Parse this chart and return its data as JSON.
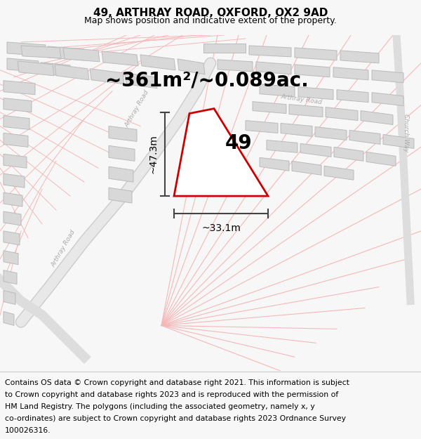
{
  "title": "49, ARTHRAY ROAD, OXFORD, OX2 9AD",
  "subtitle": "Map shows position and indicative extent of the property.",
  "area_label": "~361m²/~0.089ac.",
  "number_label": "49",
  "width_label": "~33.1m",
  "height_label": "~47.3m",
  "footer_lines": [
    "Contains OS data © Crown copyright and database right 2021. This information is subject",
    "to Crown copyright and database rights 2023 and is reproduced with the permission of",
    "HM Land Registry. The polygons (including the associated geometry, namely x, y",
    "co-ordinates) are subject to Crown copyright and database rights 2023 Ordnance Survey",
    "100026316."
  ],
  "bg_color": "#f7f7f7",
  "map_bg_color": "#ffffff",
  "property_outline_color": "#cc0000",
  "dim_line_color": "#444444",
  "road_color": "#f5b8b8",
  "road_color2": "#e8a0a0",
  "building_color": "#d8d8d8",
  "building_edge_color": "#bbbbbb",
  "road_label_color": "#aaaaaa",
  "title_fontsize": 11,
  "subtitle_fontsize": 9,
  "area_fontsize": 20,
  "number_fontsize": 20,
  "dim_fontsize": 10,
  "footer_fontsize": 7.8
}
